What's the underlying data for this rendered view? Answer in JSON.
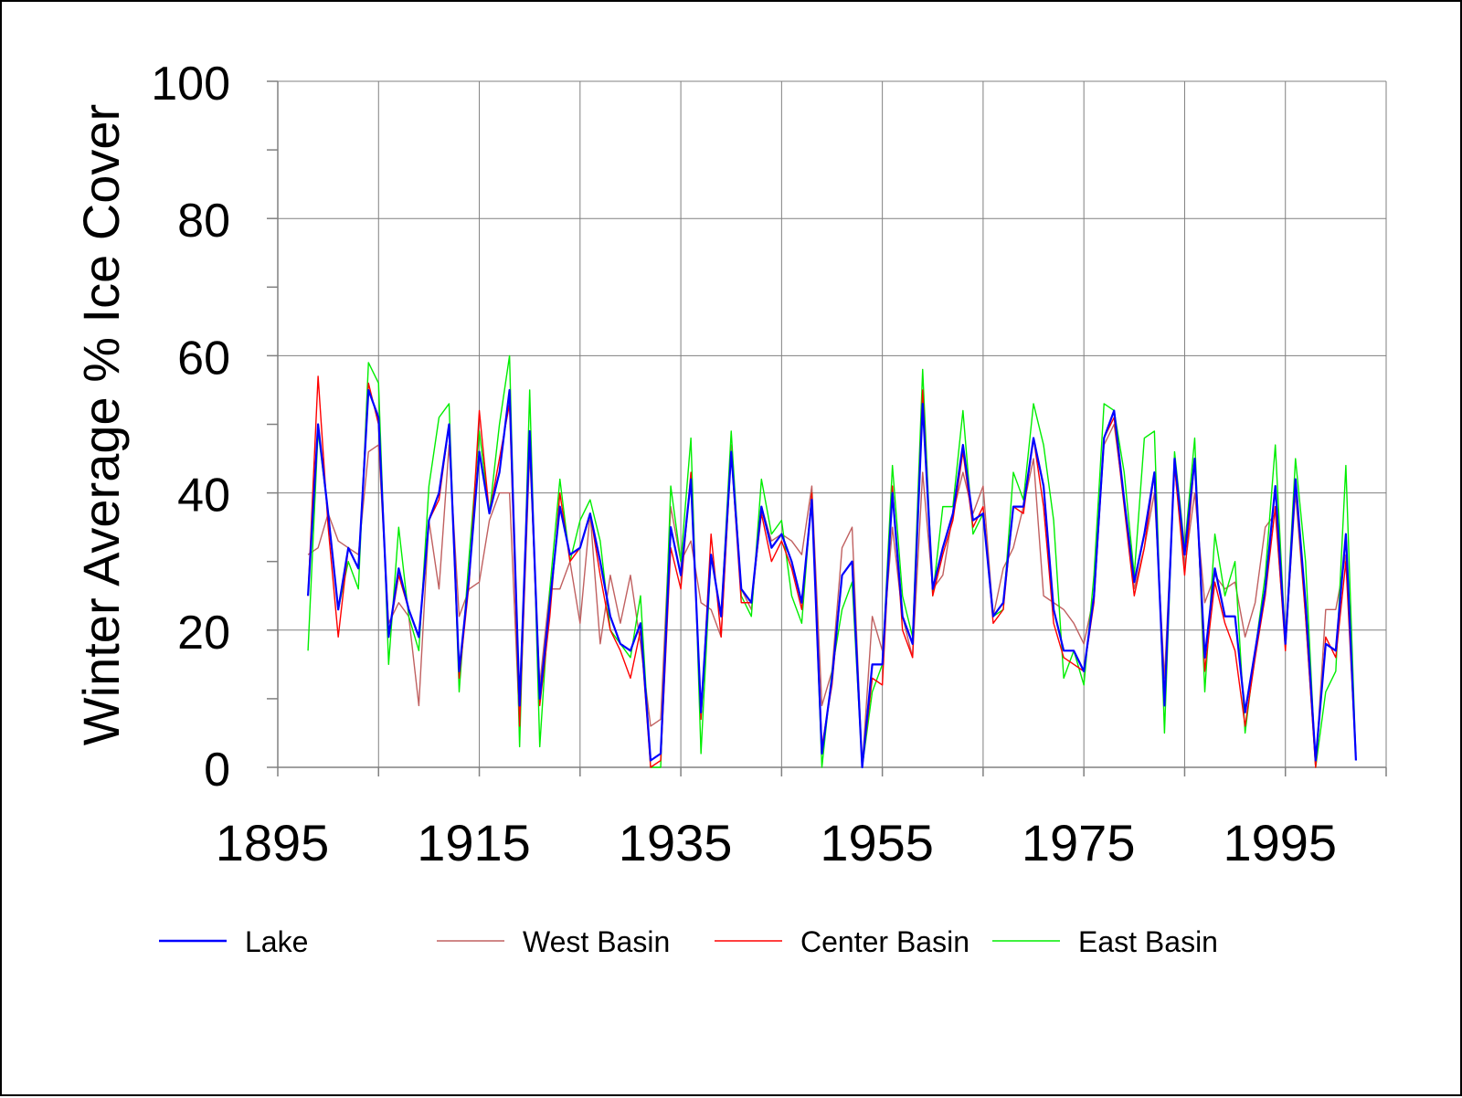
{
  "chart_data": {
    "type": "line",
    "title": "",
    "xlabel": "",
    "ylabel": "Winter Average % Ice Cover",
    "xlim": [
      1895,
      2005
    ],
    "ylim": [
      0,
      100
    ],
    "x_ticks": [
      1895,
      1915,
      1935,
      1955,
      1975,
      1995
    ],
    "y_ticks": [
      0,
      20,
      40,
      60,
      80,
      100
    ],
    "grid": true,
    "legend_position": "bottom",
    "x_start_year": 1898,
    "series": [
      {
        "name": "Lake",
        "color": "#0000ff",
        "values": [
          25,
          50,
          37,
          23,
          32,
          29,
          55,
          51,
          19,
          29,
          23,
          19,
          36,
          40,
          50,
          14,
          28,
          46,
          37,
          43,
          55,
          9,
          49,
          10,
          24,
          38,
          31,
          32,
          37,
          30,
          22,
          18,
          17,
          21,
          1,
          2,
          35,
          28,
          42,
          8,
          31,
          22,
          46,
          26,
          24,
          38,
          32,
          34,
          30,
          24,
          39,
          2,
          13,
          28,
          30,
          0,
          15,
          15,
          40,
          22,
          18,
          53,
          26,
          32,
          37,
          47,
          36,
          37,
          22,
          24,
          38,
          38,
          48,
          41,
          23,
          17,
          17,
          14,
          25,
          48,
          52,
          39,
          27,
          34,
          43,
          9,
          45,
          31,
          45,
          16,
          29,
          22,
          22,
          8,
          17,
          26,
          41,
          18,
          42,
          24,
          1,
          18,
          17,
          34,
          1
        ]
      },
      {
        "name": "West Basin",
        "color": "#c06060",
        "values": [
          31,
          32,
          37,
          33,
          32,
          31,
          46,
          47,
          21,
          24,
          22,
          9,
          36,
          26,
          47,
          22,
          26,
          27,
          36,
          40,
          40,
          6,
          46,
          12,
          26,
          26,
          30,
          21,
          37,
          18,
          28,
          21,
          28,
          18,
          6,
          7,
          38,
          30,
          33,
          24,
          23,
          19,
          47,
          26,
          23,
          38,
          33,
          34,
          33,
          31,
          41,
          9,
          14,
          32,
          35,
          0,
          22,
          17,
          35,
          22,
          16,
          43,
          26,
          28,
          37,
          43,
          37,
          41,
          22,
          29,
          32,
          38,
          45,
          25,
          24,
          23,
          21,
          18,
          25,
          47,
          50,
          39,
          26,
          32,
          40,
          13,
          44,
          29,
          40,
          24,
          28,
          26,
          27,
          19,
          24,
          35,
          37,
          18,
          40,
          22,
          0,
          23,
          23,
          31,
          2
        ]
      },
      {
        "name": "Center Basin",
        "color": "#ff0000",
        "values": [
          25,
          57,
          35,
          19,
          32,
          29,
          56,
          50,
          19,
          28,
          23,
          19,
          36,
          39,
          50,
          13,
          27,
          52,
          37,
          45,
          53,
          6,
          48,
          9,
          22,
          40,
          30,
          32,
          37,
          28,
          20,
          17,
          13,
          20,
          0,
          1,
          32,
          26,
          43,
          7,
          34,
          19,
          46,
          24,
          24,
          37,
          30,
          33,
          29,
          23,
          40,
          3,
          12,
          28,
          30,
          0,
          13,
          12,
          41,
          20,
          16,
          55,
          25,
          31,
          36,
          46,
          35,
          38,
          21,
          23,
          38,
          37,
          48,
          38,
          21,
          16,
          15,
          14,
          24,
          48,
          51,
          38,
          25,
          32,
          43,
          10,
          44,
          28,
          45,
          14,
          27,
          21,
          17,
          6,
          16,
          25,
          38,
          17,
          42,
          22,
          0,
          19,
          16,
          30,
          1
        ]
      },
      {
        "name": "East Basin",
        "color": "#00ee00",
        "values": [
          17,
          49,
          37,
          23,
          30,
          26,
          59,
          56,
          15,
          35,
          22,
          17,
          41,
          51,
          53,
          11,
          31,
          49,
          37,
          50,
          60,
          3,
          55,
          3,
          26,
          42,
          30,
          36,
          39,
          33,
          20,
          18,
          16,
          25,
          0,
          0,
          41,
          30,
          48,
          2,
          31,
          22,
          49,
          25,
          22,
          42,
          34,
          36,
          25,
          21,
          40,
          0,
          14,
          23,
          27,
          0,
          11,
          15,
          44,
          25,
          19,
          58,
          25,
          38,
          38,
          52,
          34,
          37,
          22,
          23,
          43,
          39,
          53,
          47,
          36,
          13,
          17,
          12,
          28,
          53,
          52,
          43,
          28,
          48,
          49,
          5,
          46,
          32,
          48,
          11,
          34,
          25,
          30,
          5,
          17,
          28,
          47,
          18,
          45,
          30,
          0,
          11,
          14,
          44,
          1
        ]
      }
    ]
  }
}
